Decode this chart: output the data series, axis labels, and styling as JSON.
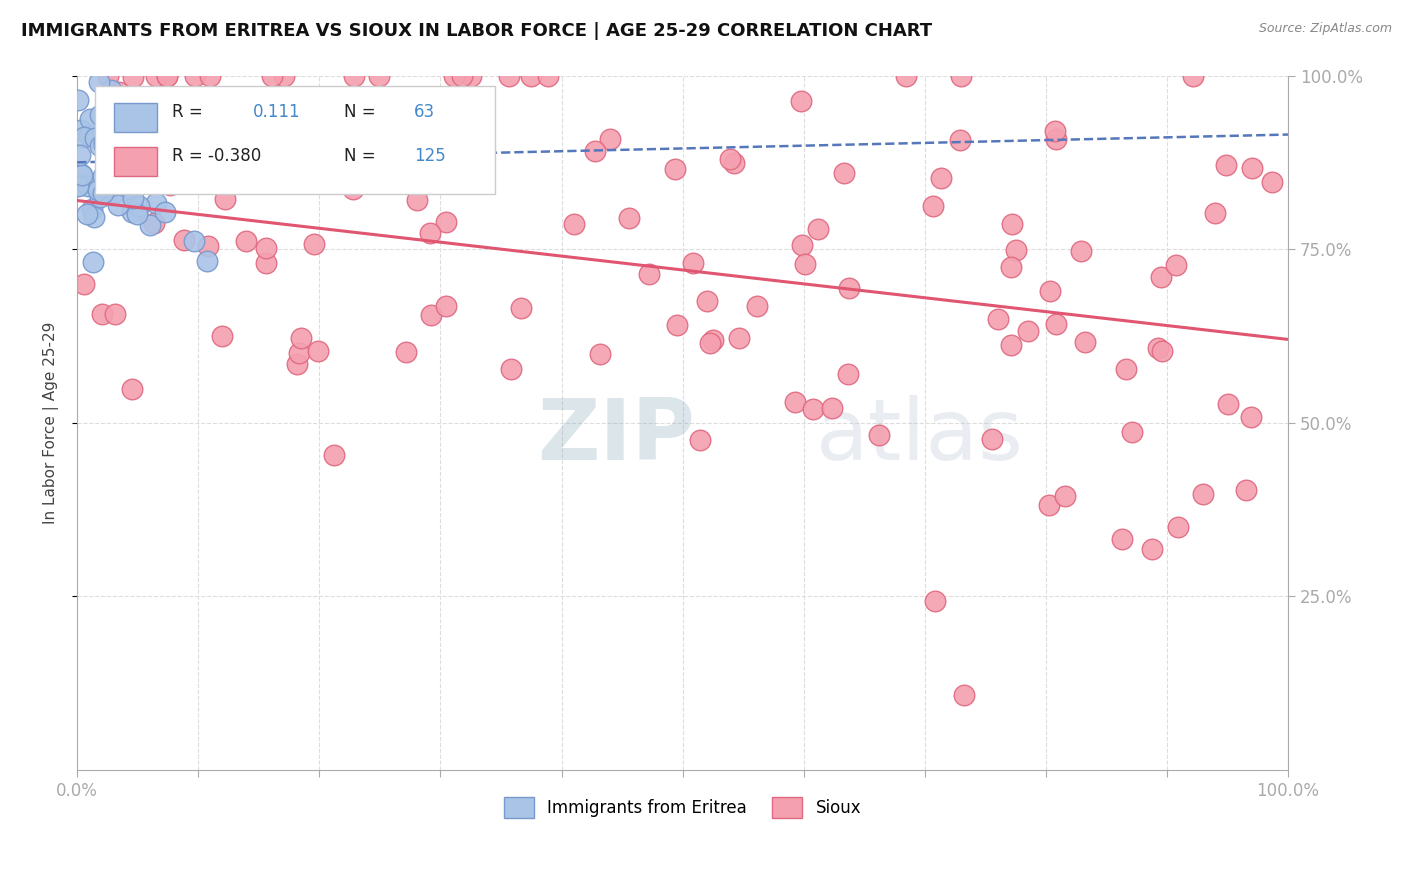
{
  "title": "IMMIGRANTS FROM ERITREA VS SIOUX IN LABOR FORCE | AGE 25-29 CORRELATION CHART",
  "source_text": "Source: ZipAtlas.com",
  "ylabel": "In Labor Force | Age 25-29",
  "xlim": [
    0.0,
    1.0
  ],
  "ylim": [
    0.0,
    1.0
  ],
  "legend_r1_val": "0.111",
  "legend_n1_val": "63",
  "legend_r2_val": "-0.380",
  "legend_n2_val": "125",
  "legend_label1": "Immigrants from Eritrea",
  "legend_label2": "Sioux",
  "scatter1_color": "#aac4e8",
  "scatter1_edge_color": "#7799cc",
  "scatter2_color": "#f4a0b0",
  "scatter2_edge_color": "#e06880",
  "line1_color": "#5577bb",
  "line2_color": "#e05570",
  "background_color": "#ffffff",
  "title_color": "#111111",
  "axis_color": "#aaaaaa",
  "grid_color": "#dddddd",
  "tick_color": "#5599cc",
  "r_val_color": "#4488cc",
  "r_label_color": "#222222"
}
